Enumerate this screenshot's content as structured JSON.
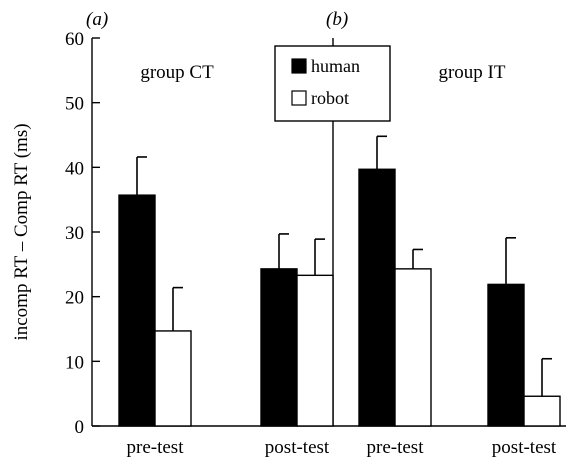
{
  "chart_data": {
    "type": "bar",
    "ylabel": "incomp RT – Comp RT (ms)",
    "ylim": [
      0,
      60
    ],
    "yticks": [
      0,
      10,
      20,
      30,
      40,
      50,
      60
    ],
    "grid": false,
    "legend_placement": "top-center",
    "series_colors": {
      "human": "#000000",
      "robot": "#ffffff"
    },
    "panels": [
      {
        "panel_label": "(a)",
        "group_label": "group CT",
        "categories": [
          "pre-test",
          "post-test"
        ],
        "series": [
          {
            "name": "human",
            "values": [
              35.7,
              24.3
            ],
            "errors": [
              5.9,
              5.4
            ]
          },
          {
            "name": "robot",
            "values": [
              14.7,
              23.3
            ],
            "errors": [
              6.7,
              5.6
            ]
          }
        ]
      },
      {
        "panel_label": "(b)",
        "group_label": "group IT",
        "categories": [
          "pre-test",
          "post-test"
        ],
        "series": [
          {
            "name": "human",
            "values": [
              39.7,
              21.9
            ],
            "errors": [
              5.1,
              7.2
            ]
          },
          {
            "name": "robot",
            "values": [
              24.3,
              4.6
            ],
            "errors": [
              3.0,
              5.8
            ]
          }
        ]
      }
    ],
    "legend": [
      "human",
      "robot"
    ]
  }
}
